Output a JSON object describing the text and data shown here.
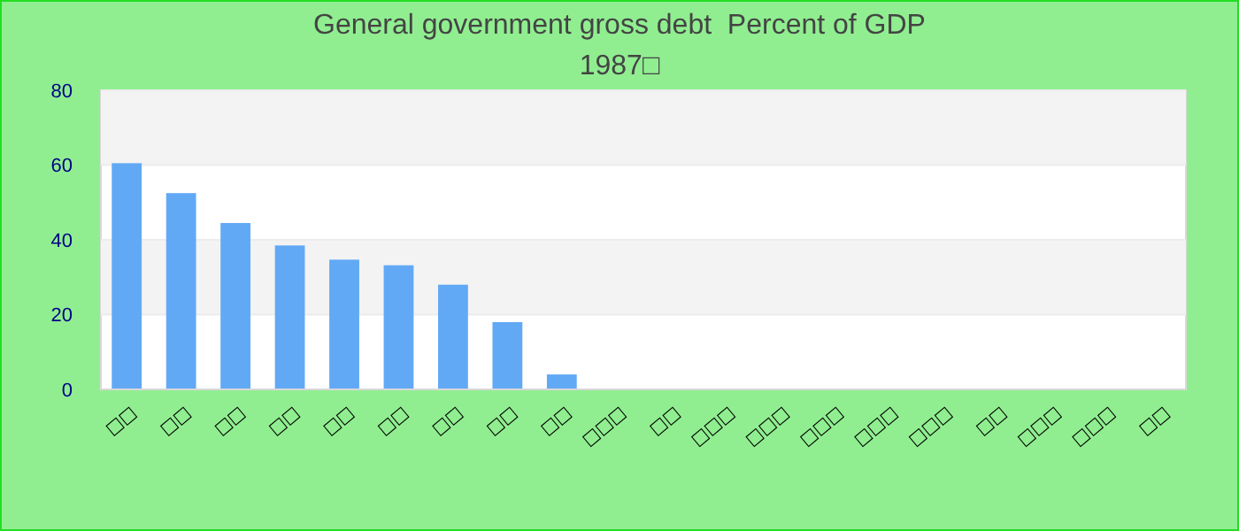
{
  "chart_data": {
    "type": "bar",
    "title": "General government gross debt  Percent of GDP",
    "subtitle": "1987□",
    "categories": [
      "□□",
      "□□",
      "□□",
      "□□",
      "□□",
      "□□",
      "□□",
      "□□",
      "□□",
      "□□□",
      "□□",
      "□□□",
      "□□□",
      "□□□",
      "□□□",
      "□□□",
      "□□",
      "□□□",
      "□□□",
      "□□"
    ],
    "values": [
      60.5,
      52.5,
      44.5,
      38.5,
      34.7,
      33.2,
      28,
      18,
      4,
      null,
      null,
      null,
      null,
      null,
      null,
      null,
      null,
      null,
      null,
      null
    ],
    "color": "#62a9f5",
    "ylim": [
      0,
      80
    ],
    "yticks": [
      0,
      20,
      40,
      60,
      80
    ],
    "grid": "y"
  }
}
